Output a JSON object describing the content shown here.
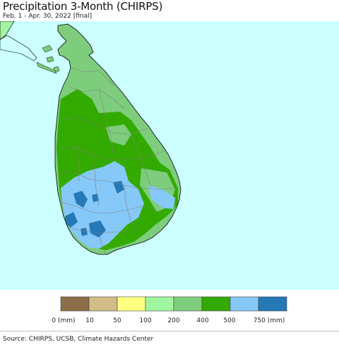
{
  "title": "Precipitation 3-Month (CHIRPS)",
  "subtitle": "Feb. 1 - Apr. 30, 2022 [final]",
  "source": "Source: CHIRPS, UCSB, Climate Hazards Center",
  "colors": {
    "ocean": "#ccffff",
    "border": "#808080",
    "coast": "#000000"
  },
  "legend": {
    "bins": [
      {
        "color": "#8b6d47"
      },
      {
        "color": "#d2bc87"
      },
      {
        "color": "#ffff80"
      },
      {
        "color": "#a0f5a0"
      },
      {
        "color": "#7dcd7d"
      },
      {
        "color": "#33aa00"
      },
      {
        "color": "#86c8f8"
      },
      {
        "color": "#2479b6"
      }
    ],
    "labels": [
      "0 (mm)",
      "10",
      "50",
      "100",
      "200",
      "400",
      "500",
      "750 (mm)"
    ]
  }
}
